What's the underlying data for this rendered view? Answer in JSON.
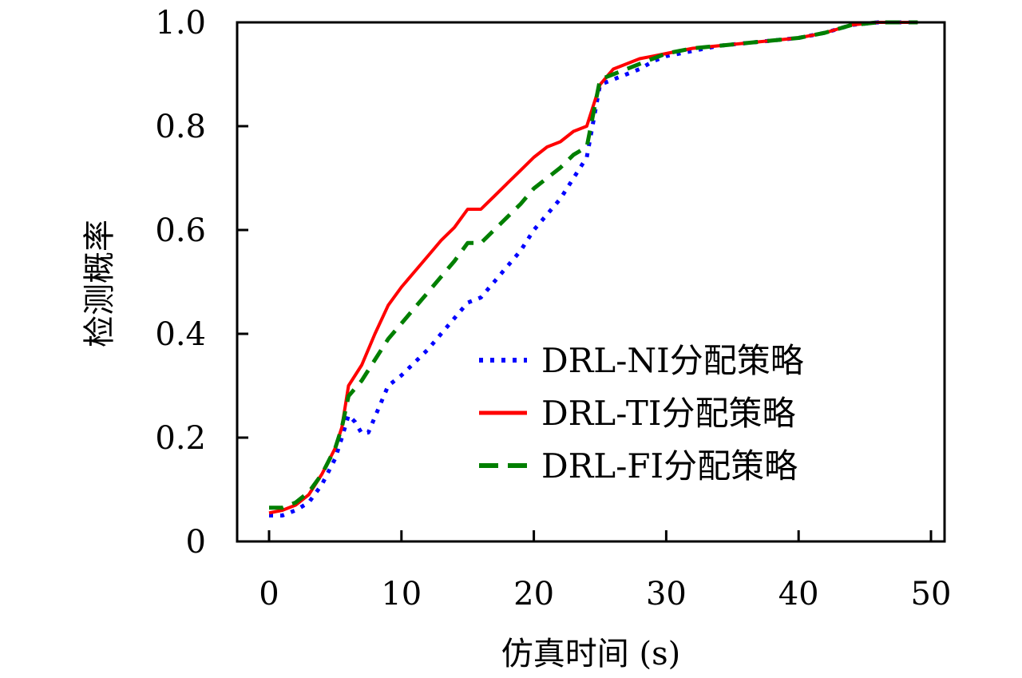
{
  "chart_data": {
    "type": "line",
    "title": "",
    "xlabel": "仿真时间 (s)",
    "ylabel": "检测概率",
    "xlim": [
      -2.4,
      51
    ],
    "ylim": [
      0,
      1.0
    ],
    "xticks": [
      0,
      10,
      20,
      30,
      40,
      50
    ],
    "xtick_labels": [
      "0",
      "10",
      "20",
      "30",
      "40",
      "50"
    ],
    "yticks": [
      0,
      0.2,
      0.4,
      0.6,
      0.8,
      1.0
    ],
    "ytick_labels": [
      "0",
      "0.2",
      "0.4",
      "0.6",
      "0.8",
      "1.0"
    ],
    "grid": false,
    "legend_position": "center-right",
    "series": [
      {
        "name": "DRL-NI分配策略",
        "color": "#0000ff",
        "style": "dotted",
        "x": [
          0,
          1,
          2,
          3,
          4,
          5,
          5.5,
          6,
          6.5,
          7,
          7.5,
          8,
          9,
          10,
          11,
          12,
          13,
          14,
          15,
          16,
          17,
          18,
          19,
          20,
          21,
          22,
          23,
          24,
          25,
          26,
          27,
          28,
          29,
          30,
          32,
          34,
          36,
          38,
          40,
          42,
          44,
          46,
          48,
          49
        ],
        "y": [
          0.05,
          0.05,
          0.06,
          0.075,
          0.11,
          0.16,
          0.2,
          0.243,
          0.23,
          0.208,
          0.21,
          0.24,
          0.3,
          0.32,
          0.345,
          0.37,
          0.4,
          0.43,
          0.46,
          0.47,
          0.5,
          0.53,
          0.56,
          0.6,
          0.63,
          0.66,
          0.7,
          0.74,
          0.88,
          0.89,
          0.9,
          0.91,
          0.925,
          0.935,
          0.945,
          0.955,
          0.96,
          0.965,
          0.97,
          0.98,
          0.995,
          1.0,
          1.0,
          1.0
        ]
      },
      {
        "name": "DRL-TI分配策略",
        "color": "#ff0000",
        "style": "solid",
        "x": [
          0,
          1,
          2,
          3,
          4,
          5,
          5.5,
          6,
          7,
          8,
          9,
          10,
          11,
          12,
          13,
          14,
          15,
          16,
          17,
          18,
          19,
          20,
          21,
          22,
          23,
          24,
          25,
          26,
          27,
          28,
          29,
          30,
          32,
          34,
          36,
          38,
          40,
          42,
          44,
          46,
          48,
          49
        ],
        "y": [
          0.055,
          0.06,
          0.07,
          0.09,
          0.13,
          0.18,
          0.22,
          0.3,
          0.34,
          0.4,
          0.455,
          0.49,
          0.52,
          0.55,
          0.58,
          0.605,
          0.64,
          0.64,
          0.665,
          0.69,
          0.715,
          0.74,
          0.76,
          0.77,
          0.79,
          0.8,
          0.88,
          0.91,
          0.92,
          0.93,
          0.935,
          0.94,
          0.95,
          0.955,
          0.96,
          0.965,
          0.97,
          0.98,
          0.995,
          1.0,
          1.0,
          1.0
        ]
      },
      {
        "name": "DRL-FI分配策略",
        "color": "#007f00",
        "style": "dashed",
        "x": [
          0,
          1,
          2,
          3,
          4,
          5,
          5.5,
          6,
          7,
          8,
          9,
          10,
          11,
          12,
          13,
          14,
          15,
          16,
          17,
          18,
          19,
          20,
          21,
          22,
          23,
          24,
          25,
          26,
          27,
          28,
          29,
          30,
          32,
          34,
          36,
          38,
          40,
          42,
          44,
          46,
          48,
          49
        ],
        "y": [
          0.065,
          0.065,
          0.075,
          0.095,
          0.13,
          0.18,
          0.22,
          0.28,
          0.31,
          0.35,
          0.39,
          0.42,
          0.45,
          0.48,
          0.51,
          0.54,
          0.575,
          0.575,
          0.6,
          0.625,
          0.65,
          0.68,
          0.7,
          0.72,
          0.745,
          0.76,
          0.89,
          0.9,
          0.91,
          0.92,
          0.93,
          0.94,
          0.95,
          0.955,
          0.96,
          0.965,
          0.97,
          0.98,
          0.995,
          1.0,
          1.0,
          1.0
        ]
      }
    ]
  }
}
